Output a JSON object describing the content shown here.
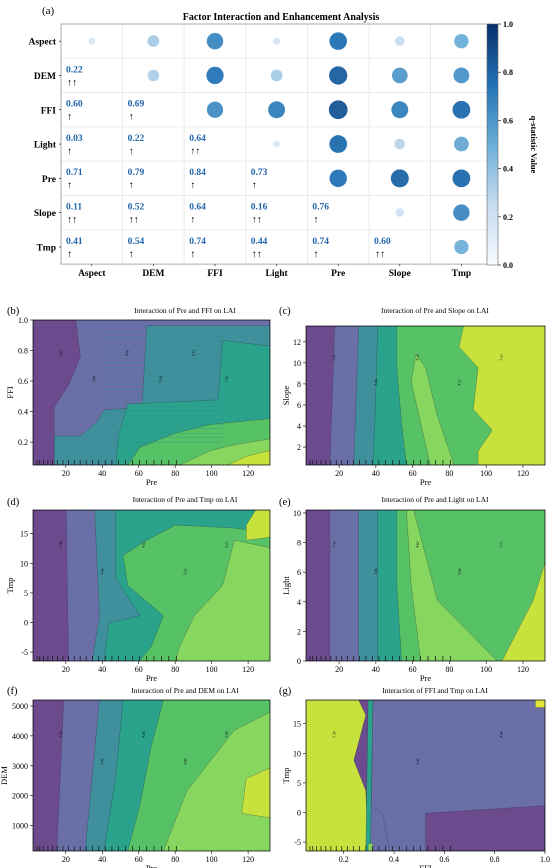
{
  "chart_data": [
    {
      "panel_label": "(a)",
      "type": "heatmap",
      "title": "Factor Interaction and Enhancement Analysis",
      "factors": [
        "Aspect",
        "DEM",
        "FFI",
        "Light",
        "Pre",
        "Slope",
        "Tmp"
      ],
      "upper_triangle_note": "circles sized/colored by q-statistic value",
      "lower_triangle_values": [
        {
          "row": "DEM",
          "col": "Aspect",
          "q": 0.22,
          "enh": "↑↑",
          "label": "0.22"
        },
        {
          "row": "FFI",
          "col": "Aspect",
          "q": 0.6,
          "enh": "↑",
          "label": "0.60"
        },
        {
          "row": "FFI",
          "col": "DEM",
          "q": 0.69,
          "enh": "↑",
          "label": "0.69"
        },
        {
          "row": "Light",
          "col": "Aspect",
          "q": 0.03,
          "enh": "↑",
          "label": "0.03"
        },
        {
          "row": "Light",
          "col": "DEM",
          "q": 0.22,
          "enh": "↑",
          "label": "0.22"
        },
        {
          "row": "Light",
          "col": "FFI",
          "q": 0.64,
          "enh": "↑↑",
          "label": "0.64"
        },
        {
          "row": "Pre",
          "col": "Aspect",
          "q": 0.71,
          "enh": "↑",
          "label": "0.71"
        },
        {
          "row": "Pre",
          "col": "DEM",
          "q": 0.79,
          "enh": "↑",
          "label": "0.79"
        },
        {
          "row": "Pre",
          "col": "FFI",
          "q": 0.84,
          "enh": "↑",
          "label": "0.84"
        },
        {
          "row": "Pre",
          "col": "Light",
          "q": 0.73,
          "enh": "↑",
          "label": "0.73"
        },
        {
          "row": "Slope",
          "col": "Aspect",
          "q": 0.11,
          "enh": "↑↑",
          "label": "0.11"
        },
        {
          "row": "Slope",
          "col": "DEM",
          "q": 0.52,
          "enh": "↑↑",
          "label": "0.52"
        },
        {
          "row": "Slope",
          "col": "FFI",
          "q": 0.64,
          "enh": "↑",
          "label": "0.64"
        },
        {
          "row": "Slope",
          "col": "Light",
          "q": 0.16,
          "enh": "↑↑",
          "label": "0.16"
        },
        {
          "row": "Slope",
          "col": "Pre",
          "q": 0.76,
          "enh": "↑",
          "label": "0.76"
        },
        {
          "row": "Tmp",
          "col": "Aspect",
          "q": 0.41,
          "enh": "↑",
          "label": "0.41"
        },
        {
          "row": "Tmp",
          "col": "DEM",
          "q": 0.54,
          "enh": "↑",
          "label": "0.54"
        },
        {
          "row": "Tmp",
          "col": "FFI",
          "q": 0.74,
          "enh": "↑",
          "label": "0.74"
        },
        {
          "row": "Tmp",
          "col": "Light",
          "q": 0.44,
          "enh": "↑↑",
          "label": "0.44"
        },
        {
          "row": "Tmp",
          "col": "Pre",
          "q": 0.74,
          "enh": "↑",
          "label": "0.74"
        },
        {
          "row": "Tmp",
          "col": "Slope",
          "q": 0.6,
          "enh": "↑↑",
          "label": "0.60"
        }
      ],
      "upper_triangle_circles": [
        {
          "row": "Aspect",
          "col": "Aspect",
          "q": 0.02
        },
        {
          "row": "Aspect",
          "col": "DEM",
          "q": 0.22
        },
        {
          "row": "Aspect",
          "col": "FFI",
          "q": 0.6
        },
        {
          "row": "Aspect",
          "col": "Light",
          "q": 0.03
        },
        {
          "row": "Aspect",
          "col": "Pre",
          "q": 0.71
        },
        {
          "row": "Aspect",
          "col": "Slope",
          "q": 0.11
        },
        {
          "row": "Aspect",
          "col": "Tmp",
          "q": 0.41
        },
        {
          "row": "DEM",
          "col": "DEM",
          "q": 0.2
        },
        {
          "row": "DEM",
          "col": "FFI",
          "q": 0.69
        },
        {
          "row": "DEM",
          "col": "Light",
          "q": 0.22
        },
        {
          "row": "DEM",
          "col": "Pre",
          "q": 0.79
        },
        {
          "row": "DEM",
          "col": "Slope",
          "q": 0.52
        },
        {
          "row": "DEM",
          "col": "Tmp",
          "q": 0.54
        },
        {
          "row": "FFI",
          "col": "FFI",
          "q": 0.58
        },
        {
          "row": "FFI",
          "col": "Light",
          "q": 0.64
        },
        {
          "row": "FFI",
          "col": "Pre",
          "q": 0.84
        },
        {
          "row": "FFI",
          "col": "Slope",
          "q": 0.64
        },
        {
          "row": "FFI",
          "col": "Tmp",
          "q": 0.74
        },
        {
          "row": "Light",
          "col": "Light",
          "q": 0.02
        },
        {
          "row": "Light",
          "col": "Pre",
          "q": 0.73
        },
        {
          "row": "Light",
          "col": "Slope",
          "q": 0.16
        },
        {
          "row": "Light",
          "col": "Tmp",
          "q": 0.44
        },
        {
          "row": "Pre",
          "col": "Pre",
          "q": 0.7
        },
        {
          "row": "Pre",
          "col": "Slope",
          "q": 0.76
        },
        {
          "row": "Pre",
          "col": "Tmp",
          "q": 0.74
        },
        {
          "row": "Slope",
          "col": "Slope",
          "q": 0.07
        },
        {
          "row": "Slope",
          "col": "Tmp",
          "q": 0.6
        },
        {
          "row": "Tmp",
          "col": "Tmp",
          "q": 0.4
        }
      ],
      "colorbar": {
        "label": "q-statistic Value",
        "range": [
          0,
          1.0
        ],
        "ticks": [
          "0.0",
          "0.2",
          "0.4",
          "0.6",
          "0.8",
          "1.0"
        ]
      }
    },
    {
      "panel_label": "(b)",
      "type": "contour",
      "title": "Interaction of Pre and FFI on LAI",
      "xlabel": "Pre",
      "ylabel": "FFI",
      "xticks": [
        "20",
        "40",
        "60",
        "80",
        "100",
        "120"
      ],
      "yticks": [
        "0.2",
        "0.4",
        "0.6",
        "0.8",
        "1.0"
      ],
      "xlim": [
        2,
        132
      ],
      "ylim": [
        0.05,
        1.0
      ],
      "levels": [
        "2.52",
        "3.84",
        "4.56",
        "5.64",
        "6.53",
        "7.36"
      ]
    },
    {
      "panel_label": "(c)",
      "type": "contour",
      "title": "Interaction of Pre and Slope on LAI",
      "xlabel": "Pre",
      "ylabel": "Slope",
      "xticks": [
        "20",
        "40",
        "60",
        "80",
        "100",
        "120"
      ],
      "yticks": [
        "2",
        "4",
        "6",
        "8",
        "10",
        "12"
      ],
      "xlim": [
        2,
        132
      ],
      "ylim": [
        0.3,
        13.5
      ],
      "levels": [
        "2.57",
        "3.04",
        "4.16",
        "4.71",
        "5.53"
      ]
    },
    {
      "panel_label": "(d)",
      "type": "contour",
      "title": "Interaction of Pre and Tmp on LAI",
      "xlabel": "Pre",
      "ylabel": "Tmp",
      "xticks": [
        "20",
        "40",
        "60",
        "80",
        "100",
        "120"
      ],
      "yticks": [
        "-5",
        "0",
        "5",
        "10",
        "15"
      ],
      "xlim": [
        2,
        132
      ],
      "ylim": [
        -6.5,
        19
      ],
      "levels": [
        "2.90",
        "3.66",
        "4.61",
        "5.52",
        "6.23"
      ]
    },
    {
      "panel_label": "(e)",
      "type": "contour",
      "title": "Interaction of Pre and Light on LAI",
      "xlabel": "Pre",
      "ylabel": "Light",
      "xticks": [
        "20",
        "40",
        "60",
        "80",
        "100",
        "120"
      ],
      "yticks": [
        "0",
        "2",
        "4",
        "6",
        "8",
        "10"
      ],
      "xlim": [
        2,
        132
      ],
      "ylim": [
        0,
        10.2
      ],
      "levels": [
        "2.56",
        "3.06",
        "4.02",
        "4.98",
        "5.73"
      ]
    },
    {
      "panel_label": "(f)",
      "type": "contour",
      "title": "Interaction of Pre and DEM on LAI",
      "xlabel": "Pre",
      "ylabel": "DEM",
      "xticks": [
        "20",
        "40",
        "60",
        "80",
        "100",
        "120"
      ],
      "yticks": [
        "1000",
        "2000",
        "3000",
        "4000",
        "5000"
      ],
      "xlim": [
        2,
        132
      ],
      "ylim": [
        150,
        5200
      ],
      "levels": [
        "2.56",
        "3.05",
        "4.00",
        "4.88",
        "5.60"
      ]
    },
    {
      "panel_label": "(g)",
      "type": "contour",
      "title": "Interaction of FFI and Tmp on LAI",
      "xlabel": "FFI",
      "ylabel": "Tmp",
      "xticks": [
        "0.2",
        "0.4",
        "0.6",
        "0.8",
        "1.0"
      ],
      "yticks": [
        "-5",
        "0",
        "5",
        "10",
        "15"
      ],
      "xlim": [
        0.05,
        1.0
      ],
      "ylim": [
        -6.5,
        19
      ],
      "levels": [
        "2.50",
        "3.46",
        "4.40"
      ]
    }
  ]
}
